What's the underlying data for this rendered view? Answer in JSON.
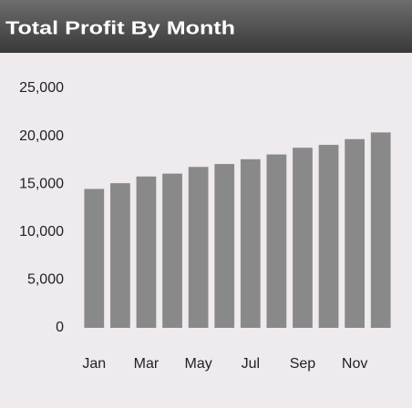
{
  "chart_data": {
    "type": "bar",
    "title": "Total Profit By Month",
    "categories": [
      "Jan",
      null,
      "Mar",
      null,
      "May",
      null,
      "Jul",
      null,
      "Sep",
      null,
      "Nov",
      null
    ],
    "values": [
      14500,
      15100,
      15800,
      16100,
      16800,
      17100,
      17600,
      18100,
      18800,
      19100,
      19700,
      20400
    ],
    "color": "#8a898a",
    "ylim": [
      0,
      25000
    ],
    "yticks": [
      0,
      {
        "value": 5000,
        "label": "5,000"
      },
      {
        "value": 10000,
        "label": "10,000"
      },
      {
        "value": 15000,
        "label": "15,000"
      },
      {
        "value": 20000,
        "label": "20,000"
      },
      {
        "value": 25000,
        "label": "25,000"
      }
    ],
    "grid": false
  }
}
